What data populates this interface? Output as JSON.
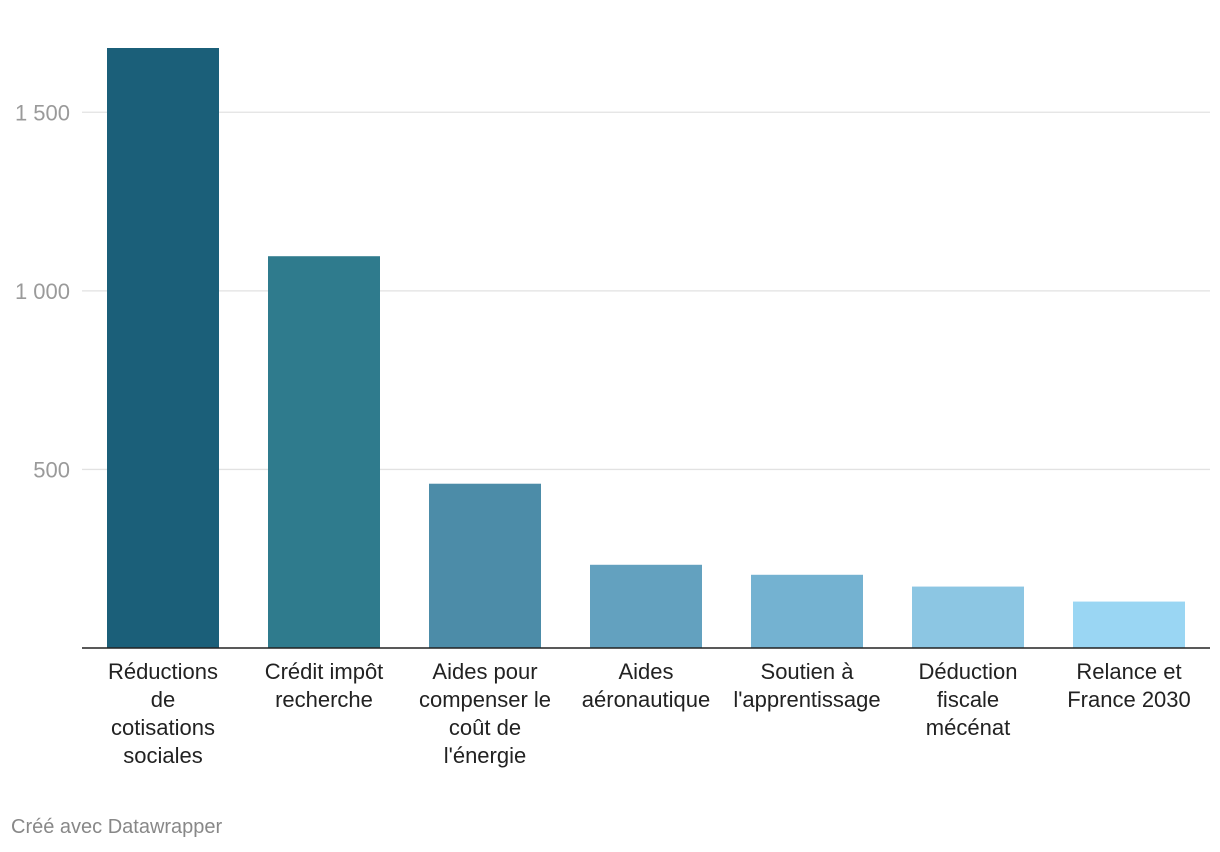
{
  "chart_data": {
    "type": "bar",
    "title": "",
    "xlabel": "",
    "ylabel": "",
    "ylim": [
      0,
      1680
    ],
    "yticks": [
      {
        "value": 500,
        "label": "500"
      },
      {
        "value": 1000,
        "label": "1 000"
      },
      {
        "value": 1500,
        "label": "1 500"
      }
    ],
    "categories": [
      {
        "label": [
          "Réductions",
          "de",
          "cotisations",
          "sociales"
        ],
        "value": 1680,
        "color": "#1b5f79"
      },
      {
        "label": [
          "Crédit impôt",
          "recherche"
        ],
        "value": 1097,
        "color": "#2f7b8d"
      },
      {
        "label": [
          "Aides pour",
          "compenser le",
          "coût de",
          "l'énergie"
        ],
        "value": 460,
        "color": "#4c8ca8"
      },
      {
        "label": [
          "Aides",
          "aéronautique"
        ],
        "value": 233,
        "color": "#63a1bf"
      },
      {
        "label": [
          "Soutien à",
          "l'apprentissage"
        ],
        "value": 205,
        "color": "#74b2d1"
      },
      {
        "label": [
          "Déduction",
          "fiscale",
          "mécénat"
        ],
        "value": 172,
        "color": "#8cc6e3"
      },
      {
        "label": [
          "Relance et",
          "France 2030"
        ],
        "value": 130,
        "color": "#9ad6f3"
      }
    ]
  },
  "footer": {
    "credit": "Créé avec Datawrapper"
  }
}
